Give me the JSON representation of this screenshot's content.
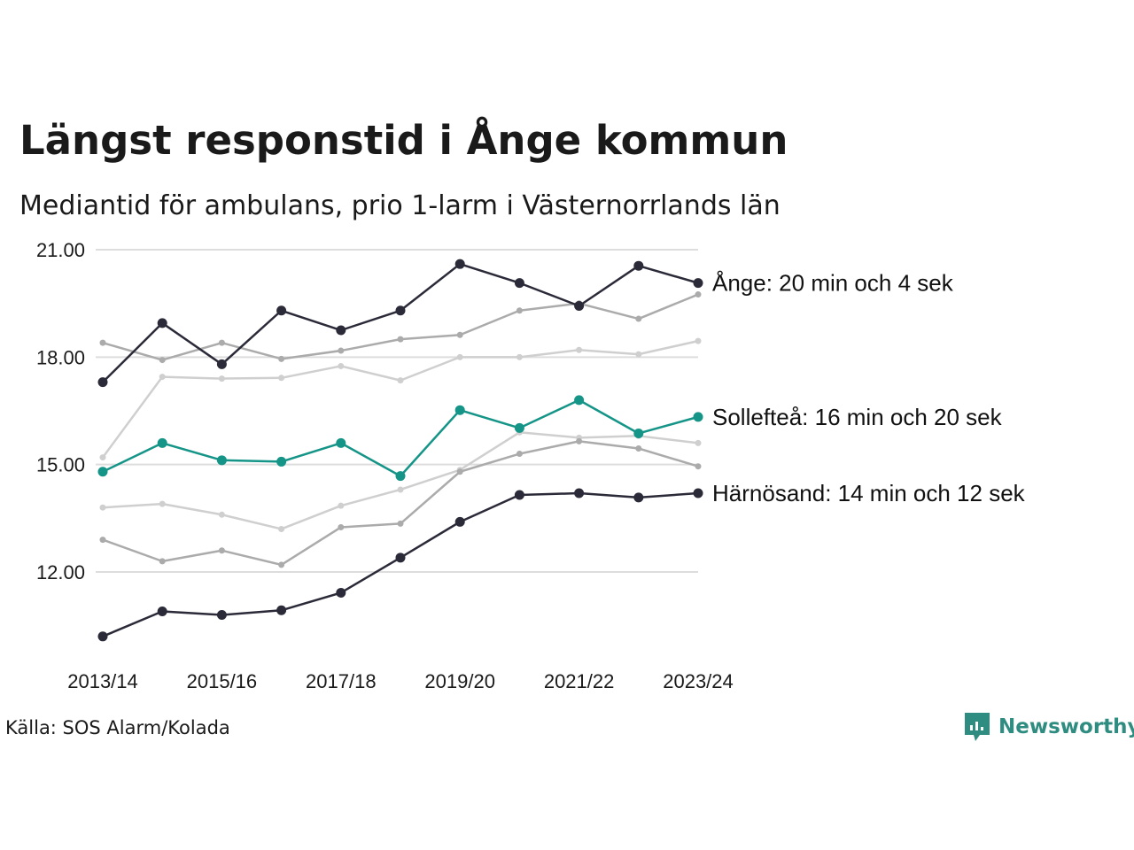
{
  "title": "Längst responstid i Ånge kommun",
  "subtitle": "Mediantid för ambulans, prio 1-larm i Västernorrlands län",
  "source": "Källa: SOS Alarm/Kolada",
  "brand": {
    "name": "Newsworthy",
    "icon": "newsworthy-logo-icon",
    "color": "#2f8c80"
  },
  "colors": {
    "dark": "#2b2a38",
    "teal": "#159488",
    "gray_mid": "#ababab",
    "gray_light": "#cfcfcf",
    "grid": "#dddddd"
  },
  "chart_data": {
    "type": "line",
    "categories": [
      "2013/14",
      "2014/15",
      "2015/16",
      "2016/17",
      "2017/18",
      "2018/19",
      "2019/20",
      "2020/21",
      "2021/22",
      "2022/23",
      "2023/24"
    ],
    "x_tick_labels": [
      "2013/14",
      "2015/16",
      "2017/18",
      "2019/20",
      "2021/22",
      "2023/24"
    ],
    "y_ticks": [
      12,
      15,
      18,
      21
    ],
    "y_tick_labels": [
      "12.00",
      "15.00",
      "18.00",
      "21.00"
    ],
    "ylim": [
      10.1,
      21.4
    ],
    "grid": "horizontal",
    "series": [
      {
        "name": "",
        "style": "gray_light",
        "values": [
          13.8,
          13.9,
          13.6,
          13.2,
          13.85,
          14.3,
          14.85,
          15.9,
          15.75,
          15.8,
          15.6
        ]
      },
      {
        "name": "",
        "style": "gray_mid",
        "values": [
          12.9,
          12.3,
          12.6,
          12.2,
          13.25,
          13.35,
          14.8,
          15.3,
          15.65,
          15.45,
          14.95
        ]
      },
      {
        "name": "",
        "style": "gray_light",
        "values": [
          15.2,
          17.45,
          17.4,
          17.42,
          17.75,
          17.35,
          18.0,
          18.0,
          18.2,
          18.08,
          18.45
        ]
      },
      {
        "name": "",
        "style": "gray_mid",
        "values": [
          18.4,
          17.92,
          18.4,
          17.95,
          18.18,
          18.5,
          18.62,
          19.3,
          19.5,
          19.07,
          19.75
        ]
      },
      {
        "name": "Härnösand",
        "style": "dark",
        "label": "Härnösand: 14 min och 12 sek",
        "values": [
          10.2,
          10.9,
          10.8,
          10.93,
          11.42,
          12.4,
          13.4,
          14.15,
          14.2,
          14.08,
          14.2
        ]
      },
      {
        "name": "Sollefteå",
        "style": "teal",
        "label": "Sollefteå: 16 min och 20 sek",
        "values": [
          14.8,
          15.6,
          15.12,
          15.08,
          15.6,
          14.68,
          16.52,
          16.02,
          16.8,
          15.87,
          16.33
        ]
      },
      {
        "name": "Ånge",
        "style": "dark",
        "label": "Ånge: 20 min och 4 sek",
        "values": [
          17.3,
          18.95,
          17.8,
          19.3,
          18.75,
          19.3,
          20.6,
          20.07,
          19.43,
          20.55,
          20.07
        ]
      }
    ]
  }
}
